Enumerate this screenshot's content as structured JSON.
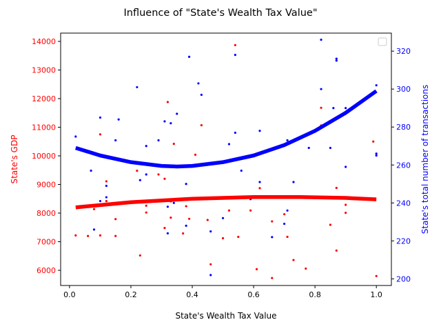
{
  "chart_data": {
    "type": "scatter",
    "title": "Influence of \"State's Wealth Tax Value\"",
    "xlabel": "State's Wealth Tax Value",
    "ylabel_left": "State's GDP",
    "ylabel_right": "State's total number of transactions",
    "xlim": [
      -0.029,
      1.049
    ],
    "ylim_left": [
      5470,
      14290
    ],
    "ylim_right": [
      196.5,
      329.5
    ],
    "xticks": [
      0.0,
      0.2,
      0.4,
      0.6,
      0.8,
      1.0
    ],
    "xtick_labels": [
      "0.0",
      "0.2",
      "0.4",
      "0.6",
      "0.8",
      "1.0"
    ],
    "yticks_left": [
      6000,
      7000,
      8000,
      9000,
      10000,
      11000,
      12000,
      13000,
      14000
    ],
    "ytick_labels_left": [
      "6000",
      "7000",
      "8000",
      "9000",
      "10000",
      "11000",
      "12000",
      "13000",
      "14000"
    ],
    "yticks_right": [
      200,
      220,
      240,
      260,
      280,
      300,
      320
    ],
    "ytick_labels_right": [
      "200",
      "220",
      "240",
      "260",
      "280",
      "300",
      "320"
    ],
    "grid": false,
    "legend": "top-right",
    "left_color": "#ff0000",
    "right_color": "#0000ff",
    "series": [
      {
        "axis": "left",
        "color": "#ff0000",
        "points": [
          [
            0.02,
            7220
          ],
          [
            0.06,
            7200
          ],
          [
            0.08,
            8140
          ],
          [
            0.1,
            7220
          ],
          [
            0.1,
            10750
          ],
          [
            0.12,
            8420
          ],
          [
            0.12,
            9110
          ],
          [
            0.15,
            7790
          ],
          [
            0.15,
            7200
          ],
          [
            0.22,
            9480
          ],
          [
            0.23,
            6520
          ],
          [
            0.25,
            8260
          ],
          [
            0.25,
            8020
          ],
          [
            0.29,
            9350
          ],
          [
            0.31,
            7480
          ],
          [
            0.31,
            9200
          ],
          [
            0.32,
            11880
          ],
          [
            0.33,
            8410
          ],
          [
            0.33,
            7840
          ],
          [
            0.34,
            10420
          ],
          [
            0.37,
            7290
          ],
          [
            0.38,
            8240
          ],
          [
            0.39,
            7800
          ],
          [
            0.41,
            10040
          ],
          [
            0.43,
            11070
          ],
          [
            0.45,
            7760
          ],
          [
            0.46,
            6210
          ],
          [
            0.5,
            7120
          ],
          [
            0.52,
            8090
          ],
          [
            0.54,
            13870
          ],
          [
            0.55,
            7170
          ],
          [
            0.59,
            8090
          ],
          [
            0.61,
            6040
          ],
          [
            0.62,
            8870
          ],
          [
            0.66,
            7710
          ],
          [
            0.66,
            5730
          ],
          [
            0.7,
            7960
          ],
          [
            0.71,
            7170
          ],
          [
            0.73,
            6360
          ],
          [
            0.77,
            6060
          ],
          [
            0.82,
            11680
          ],
          [
            0.82,
            11060
          ],
          [
            0.85,
            7590
          ],
          [
            0.86,
            11260
          ],
          [
            0.87,
            8880
          ],
          [
            0.87,
            6690
          ],
          [
            0.9,
            8290
          ],
          [
            0.9,
            8010
          ],
          [
            0.99,
            10500
          ],
          [
            1.0,
            5800
          ]
        ]
      },
      {
        "axis": "right",
        "color": "#0000ff",
        "points": [
          [
            0.02,
            275
          ],
          [
            0.07,
            257
          ],
          [
            0.08,
            226
          ],
          [
            0.1,
            241
          ],
          [
            0.1,
            285
          ],
          [
            0.12,
            249
          ],
          [
            0.12,
            243
          ],
          [
            0.15,
            273
          ],
          [
            0.16,
            284
          ],
          [
            0.22,
            301
          ],
          [
            0.23,
            252
          ],
          [
            0.25,
            270
          ],
          [
            0.25,
            255
          ],
          [
            0.29,
            273
          ],
          [
            0.31,
            241
          ],
          [
            0.31,
            283
          ],
          [
            0.32,
            224
          ],
          [
            0.32,
            238
          ],
          [
            0.33,
            282
          ],
          [
            0.34,
            240
          ],
          [
            0.35,
            287
          ],
          [
            0.38,
            228
          ],
          [
            0.38,
            250
          ],
          [
            0.39,
            317
          ],
          [
            0.42,
            303
          ],
          [
            0.43,
            297
          ],
          [
            0.46,
            225
          ],
          [
            0.46,
            202
          ],
          [
            0.5,
            232
          ],
          [
            0.52,
            271
          ],
          [
            0.54,
            277
          ],
          [
            0.54,
            318
          ],
          [
            0.56,
            257
          ],
          [
            0.59,
            242
          ],
          [
            0.62,
            251
          ],
          [
            0.62,
            278
          ],
          [
            0.66,
            222
          ],
          [
            0.7,
            229
          ],
          [
            0.71,
            236
          ],
          [
            0.71,
            273
          ],
          [
            0.73,
            251
          ],
          [
            0.78,
            269
          ],
          [
            0.82,
            326
          ],
          [
            0.82,
            300
          ],
          [
            0.85,
            269
          ],
          [
            0.86,
            290
          ],
          [
            0.87,
            316
          ],
          [
            0.87,
            315
          ],
          [
            0.9,
            259
          ],
          [
            0.9,
            290
          ],
          [
            1.0,
            302
          ],
          [
            1.0,
            266
          ],
          [
            1.0,
            265
          ]
        ]
      }
    ],
    "trend_left": {
      "color": "#ff0000",
      "points": [
        [
          0.02,
          8200
        ],
        [
          0.2,
          8380
        ],
        [
          0.4,
          8500
        ],
        [
          0.6,
          8560
        ],
        [
          0.75,
          8560
        ],
        [
          0.9,
          8530
        ],
        [
          1.0,
          8480
        ]
      ]
    },
    "trend_right": {
      "color": "#0000ff",
      "points": [
        [
          0.02,
          269
        ],
        [
          0.1,
          265
        ],
        [
          0.2,
          261.5
        ],
        [
          0.3,
          259.5
        ],
        [
          0.35,
          259.2
        ],
        [
          0.4,
          259.5
        ],
        [
          0.5,
          261.5
        ],
        [
          0.6,
          265
        ],
        [
          0.7,
          270.5
        ],
        [
          0.8,
          278
        ],
        [
          0.9,
          287.5
        ],
        [
          1.0,
          299
        ]
      ]
    }
  }
}
